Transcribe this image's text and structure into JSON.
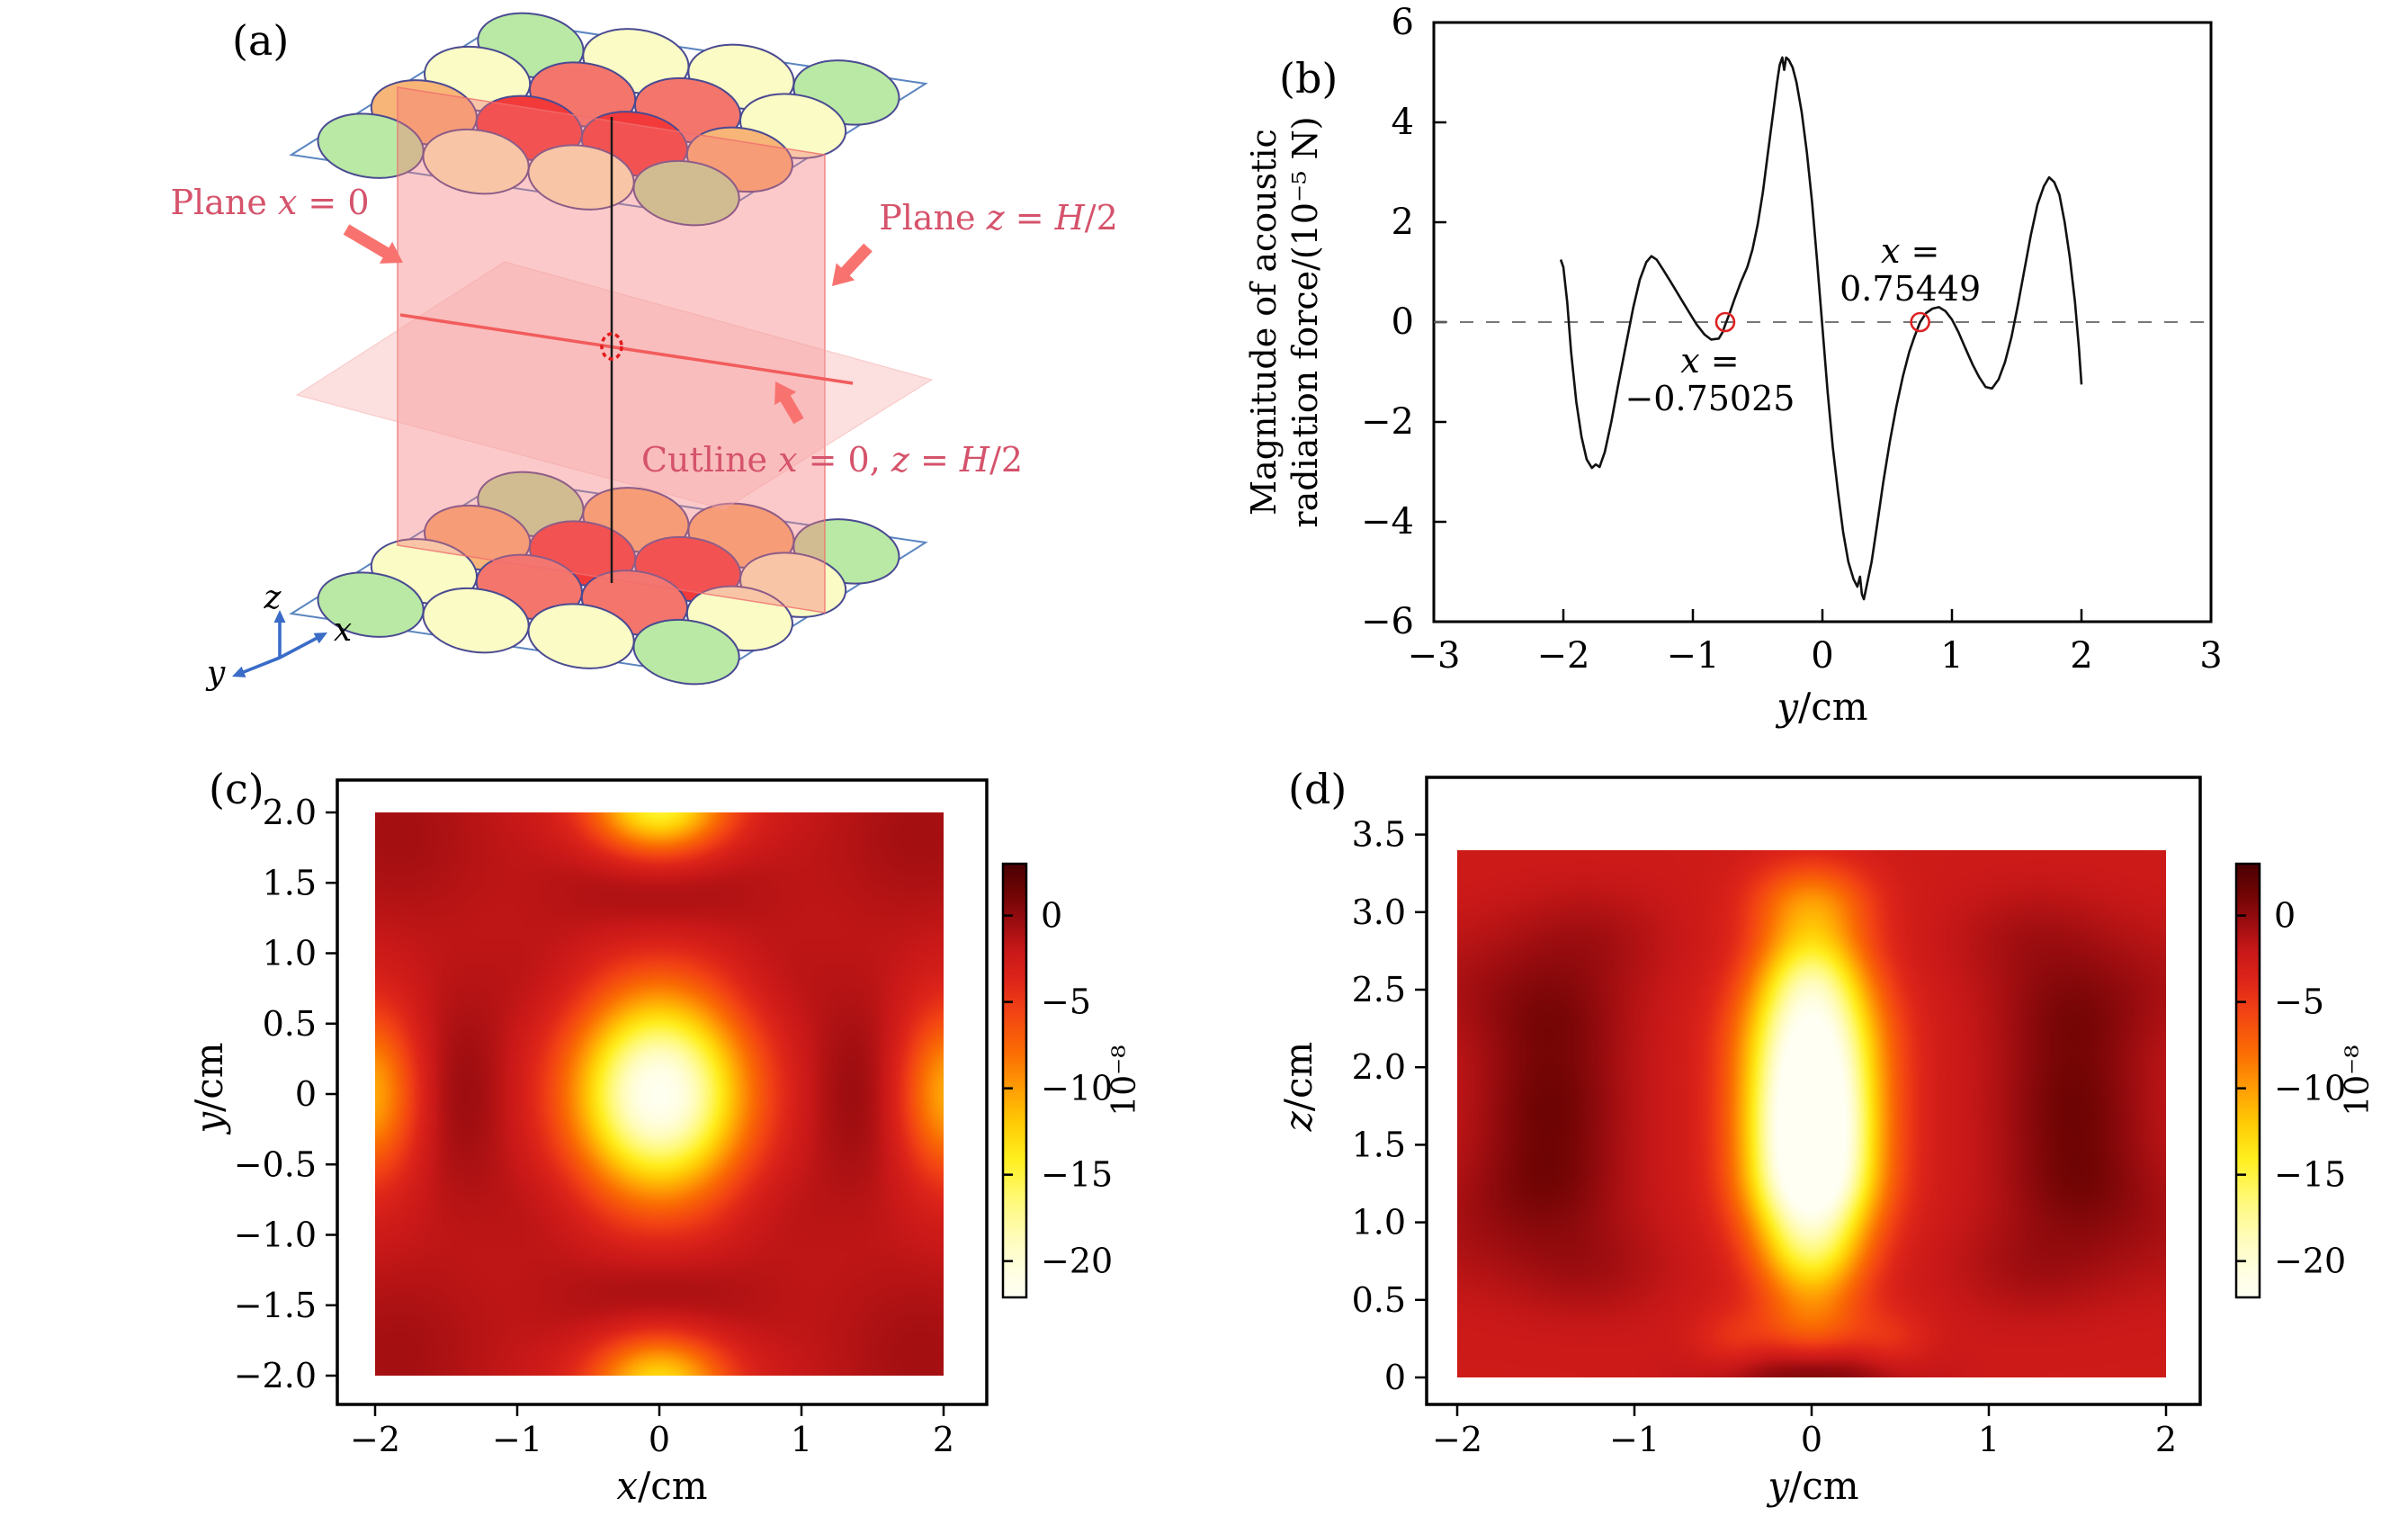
{
  "figure": {
    "type": "scientific-multipanel",
    "accent_colors": {
      "crimson_label": "#d5536b",
      "salmon_arrow": "#f8736f",
      "axis_blue": "#3a6cc8",
      "marker_red": "#dd2222",
      "curve_black": "#111111"
    }
  },
  "panel_a": {
    "label": "(a)",
    "annotations": {
      "plane_x": "Plane x = 0",
      "plane_z": "Plane z = H/2",
      "cutline": "Cutline x = 0, z = H/2"
    },
    "axes_labels": {
      "x": "x",
      "y": "y",
      "z": "z"
    },
    "transducer_colors": {
      "G": "#b9e9a4",
      "Y": "#fafbc5",
      "S": "#f4756b",
      "R": "#f23a3a",
      "O": "#f7b577"
    },
    "top_array_rows": [
      [
        "G",
        "Y",
        "Y",
        "G"
      ],
      [
        "Y",
        "S",
        "S",
        "Y"
      ],
      [
        "O",
        "R",
        "R",
        "O"
      ],
      [
        "G",
        "Y",
        "Y",
        "G"
      ]
    ],
    "bottom_array_rows": [
      [
        "G",
        "O",
        "O",
        "G"
      ],
      [
        "O",
        "R",
        "R",
        "Y"
      ],
      [
        "Y",
        "S",
        "S",
        "Y"
      ],
      [
        "G",
        "Y",
        "Y",
        "G"
      ]
    ],
    "outline_color": "#5b86c0",
    "circle_stroke": "#4a4a92",
    "vplane_fill": "rgba(246,120,120,0.40)",
    "hplane_fill": "rgba(248,170,170,0.38)",
    "cutline_color": "#f25c5c",
    "dotted_circle_color": "#e31a1c"
  },
  "panel_b": {
    "label": "(b)"
  },
  "panel_c": {
    "label": "(c)"
  },
  "panel_d": {
    "label": "(d)"
  },
  "chart_data": [
    {
      "id": "b",
      "type": "line",
      "ylabel_lines": [
        "Magnitude of acoustic",
        "radiation force/(10⁻⁵ N)"
      ],
      "xlabel": "y/cm",
      "xlim": [
        -3,
        3
      ],
      "ylim": [
        -6,
        6
      ],
      "xticks": [
        "−3",
        "−2",
        "−1",
        "0",
        "1",
        "2",
        "3"
      ],
      "xtick_vals": [
        -3,
        -2,
        -1,
        0,
        1,
        2,
        3
      ],
      "yticks": [
        "−6",
        "−4",
        "−2",
        "0",
        "2",
        "4",
        "6"
      ],
      "ytick_vals": [
        -6,
        -4,
        -2,
        0,
        2,
        4,
        6
      ],
      "zero_line_dashed": true,
      "markers": [
        {
          "x": -0.75025,
          "y": 0,
          "label_lines": [
            "x =",
            "−0.75025"
          ],
          "label_side": "below"
        },
        {
          "x": 0.75449,
          "y": 0,
          "label_lines": [
            "x =",
            "0.75449"
          ],
          "label_side": "above"
        }
      ],
      "points": [
        [
          -2.02,
          1.25
        ],
        [
          -2.0,
          1.1
        ],
        [
          -1.97,
          0.4
        ],
        [
          -1.94,
          -0.6
        ],
        [
          -1.9,
          -1.6
        ],
        [
          -1.86,
          -2.3
        ],
        [
          -1.82,
          -2.75
        ],
        [
          -1.78,
          -2.92
        ],
        [
          -1.75,
          -2.85
        ],
        [
          -1.72,
          -2.9
        ],
        [
          -1.68,
          -2.6
        ],
        [
          -1.63,
          -2.0
        ],
        [
          -1.58,
          -1.3
        ],
        [
          -1.52,
          -0.5
        ],
        [
          -1.46,
          0.3
        ],
        [
          -1.41,
          0.85
        ],
        [
          -1.36,
          1.2
        ],
        [
          -1.32,
          1.32
        ],
        [
          -1.28,
          1.25
        ],
        [
          -1.23,
          1.05
        ],
        [
          -1.17,
          0.8
        ],
        [
          -1.1,
          0.5
        ],
        [
          -1.03,
          0.2
        ],
        [
          -0.97,
          -0.05
        ],
        [
          -0.91,
          -0.25
        ],
        [
          -0.86,
          -0.35
        ],
        [
          -0.8,
          -0.33
        ],
        [
          -0.77,
          -0.2
        ],
        [
          -0.75,
          -0.05
        ],
        [
          -0.72,
          0.15
        ],
        [
          -0.68,
          0.45
        ],
        [
          -0.63,
          0.8
        ],
        [
          -0.58,
          1.1
        ],
        [
          -0.54,
          1.45
        ],
        [
          -0.5,
          1.95
        ],
        [
          -0.46,
          2.6
        ],
        [
          -0.42,
          3.4
        ],
        [
          -0.38,
          4.2
        ],
        [
          -0.35,
          4.8
        ],
        [
          -0.33,
          5.15
        ],
        [
          -0.31,
          5.3
        ],
        [
          -0.295,
          5.05
        ],
        [
          -0.28,
          5.3
        ],
        [
          -0.26,
          5.25
        ],
        [
          -0.23,
          5.1
        ],
        [
          -0.2,
          4.8
        ],
        [
          -0.16,
          4.2
        ],
        [
          -0.12,
          3.4
        ],
        [
          -0.08,
          2.4
        ],
        [
          -0.04,
          1.2
        ],
        [
          0.0,
          -0.1
        ],
        [
          0.04,
          -1.4
        ],
        [
          0.08,
          -2.5
        ],
        [
          0.12,
          -3.4
        ],
        [
          0.16,
          -4.2
        ],
        [
          0.2,
          -4.8
        ],
        [
          0.24,
          -5.15
        ],
        [
          0.27,
          -5.3
        ],
        [
          0.29,
          -5.1
        ],
        [
          0.305,
          -5.45
        ],
        [
          0.32,
          -5.55
        ],
        [
          0.34,
          -5.3
        ],
        [
          0.38,
          -4.8
        ],
        [
          0.42,
          -4.1
        ],
        [
          0.47,
          -3.2
        ],
        [
          0.52,
          -2.4
        ],
        [
          0.57,
          -1.7
        ],
        [
          0.62,
          -1.1
        ],
        [
          0.67,
          -0.6
        ],
        [
          0.71,
          -0.3
        ],
        [
          0.754,
          0.0
        ],
        [
          0.8,
          0.18
        ],
        [
          0.85,
          0.27
        ],
        [
          0.9,
          0.3
        ],
        [
          0.95,
          0.22
        ],
        [
          1.0,
          0.05
        ],
        [
          1.05,
          -0.2
        ],
        [
          1.1,
          -0.5
        ],
        [
          1.16,
          -0.85
        ],
        [
          1.21,
          -1.1
        ],
        [
          1.26,
          -1.3
        ],
        [
          1.31,
          -1.33
        ],
        [
          1.36,
          -1.15
        ],
        [
          1.41,
          -0.8
        ],
        [
          1.46,
          -0.3
        ],
        [
          1.51,
          0.35
        ],
        [
          1.56,
          1.05
        ],
        [
          1.61,
          1.75
        ],
        [
          1.66,
          2.35
        ],
        [
          1.71,
          2.72
        ],
        [
          1.75,
          2.9
        ],
        [
          1.79,
          2.8
        ],
        [
          1.83,
          2.55
        ],
        [
          1.87,
          2.0
        ],
        [
          1.91,
          1.3
        ],
        [
          1.95,
          0.4
        ],
        [
          1.98,
          -0.5
        ],
        [
          2.0,
          -1.25
        ]
      ]
    },
    {
      "id": "c",
      "type": "heatmap",
      "xlabel": "x/cm",
      "ylabel": "y/cm",
      "extent": {
        "x": [
          -2,
          2
        ],
        "y": [
          -2,
          2
        ]
      },
      "xticks": [
        "−2",
        "−1",
        "0",
        "1",
        "2"
      ],
      "xtick_vals": [
        -2,
        -1,
        0,
        1,
        2
      ],
      "yticks": [
        "2.0",
        "1.5",
        "1.0",
        "0.5",
        "0",
        "−0.5",
        "−1.0",
        "−1.5",
        "−2.0"
      ],
      "ytick_vals": [
        2.0,
        1.5,
        1.0,
        0.5,
        0,
        -0.5,
        -1.0,
        -1.5,
        -2.0
      ],
      "base_value": -2.4,
      "blobs": [
        [
          0,
          0,
          0.42,
          0.5,
          -19.5
        ],
        [
          0,
          2.05,
          0.34,
          0.26,
          -13
        ],
        [
          0,
          -2.05,
          0.34,
          0.26,
          -11
        ],
        [
          -2.05,
          0,
          0.26,
          0.42,
          -8.5
        ],
        [
          2.05,
          0,
          0.26,
          0.42,
          -8.5
        ],
        [
          1.42,
          0,
          0.3,
          0.55,
          2.3
        ],
        [
          -1.42,
          0,
          0.3,
          0.55,
          2.3
        ],
        [
          0,
          1.5,
          0.55,
          0.3,
          2.3
        ],
        [
          0,
          -1.5,
          0.55,
          0.3,
          2.3
        ],
        [
          1.85,
          1.85,
          0.5,
          0.5,
          1.7
        ],
        [
          -1.85,
          1.85,
          0.5,
          0.5,
          1.7
        ],
        [
          1.85,
          -1.85,
          0.5,
          0.5,
          1.7
        ],
        [
          -1.85,
          -1.85,
          0.5,
          0.5,
          1.7
        ],
        [
          0.8,
          0.8,
          0.3,
          0.3,
          0.9
        ],
        [
          -0.8,
          0.8,
          0.3,
          0.3,
          0.9
        ],
        [
          0.8,
          -0.8,
          0.3,
          0.3,
          0.9
        ],
        [
          -0.8,
          -0.8,
          0.3,
          0.3,
          0.9
        ]
      ],
      "colorbar": {
        "ticks": [
          "0",
          "−5",
          "−10",
          "−15",
          "−20"
        ],
        "tick_vals": [
          0,
          -5,
          -10,
          -15,
          -20
        ],
        "vmax": 3,
        "vmin": -22.1,
        "label": "10⁻⁸"
      }
    },
    {
      "id": "d",
      "type": "heatmap",
      "xlabel": "y/cm",
      "ylabel": "z/cm",
      "extent": {
        "x": [
          -2,
          2
        ],
        "y": [
          0,
          3.4
        ]
      },
      "xticks": [
        "−2",
        "−1",
        "0",
        "1",
        "2"
      ],
      "xtick_vals": [
        -2,
        -1,
        0,
        1,
        2
      ],
      "yticks": [
        "3.5",
        "3.0",
        "2.5",
        "2.0",
        "1.5",
        "1.0",
        "0.5",
        "0"
      ],
      "ytick_vals": [
        3.5,
        3.0,
        2.5,
        2.0,
        1.5,
        1.0,
        0.5,
        0
      ],
      "base_value": -2.4,
      "blobs": [
        [
          0,
          1.7,
          0.26,
          0.3,
          -20
        ],
        [
          0,
          1.22,
          0.26,
          0.26,
          -16
        ],
        [
          0,
          2.22,
          0.27,
          0.28,
          -15
        ],
        [
          0,
          0.78,
          0.22,
          0.22,
          -9
        ],
        [
          0,
          2.62,
          0.22,
          0.22,
          -8.5
        ],
        [
          0,
          3.05,
          0.24,
          0.2,
          -6.5
        ],
        [
          0,
          0.32,
          0.22,
          0.2,
          -4.5
        ],
        [
          1.48,
          1.28,
          0.3,
          0.26,
          2.7
        ],
        [
          -1.48,
          1.28,
          0.3,
          0.26,
          2.7
        ],
        [
          1.48,
          1.78,
          0.3,
          0.26,
          2.9
        ],
        [
          -1.48,
          1.78,
          0.3,
          0.26,
          2.9
        ],
        [
          1.45,
          2.3,
          0.3,
          0.26,
          2.5
        ],
        [
          -1.45,
          2.3,
          0.3,
          0.26,
          2.5
        ],
        [
          1.25,
          0.72,
          0.32,
          0.24,
          1.6
        ],
        [
          -1.25,
          0.72,
          0.32,
          0.24,
          1.6
        ],
        [
          1.25,
          2.82,
          0.32,
          0.24,
          1.5
        ],
        [
          -1.25,
          2.82,
          0.32,
          0.24,
          1.5
        ],
        [
          1.9,
          0.95,
          0.38,
          0.3,
          1.2
        ],
        [
          -1.9,
          0.95,
          0.38,
          0.3,
          1.2
        ],
        [
          1.9,
          2.55,
          0.38,
          0.3,
          1.1
        ],
        [
          -1.9,
          2.55,
          0.38,
          0.3,
          1.1
        ],
        [
          0,
          0.02,
          0.38,
          0.14,
          4.2
        ],
        [
          0.45,
          0.22,
          0.16,
          0.16,
          -2.2
        ],
        [
          -0.45,
          0.22,
          0.16,
          0.16,
          -2.2
        ]
      ],
      "colorbar": {
        "ticks": [
          "0",
          "−5",
          "−10",
          "−15",
          "−20"
        ],
        "tick_vals": [
          0,
          -5,
          -10,
          -15,
          -20
        ],
        "vmax": 3,
        "vmin": -22.1,
        "label": "10⁻⁸"
      }
    }
  ],
  "colormap_stops": [
    [
      0.0,
      [
        74,
        0,
        3
      ]
    ],
    [
      0.07,
      [
        112,
        4,
        4
      ]
    ],
    [
      0.13,
      [
        152,
        12,
        15
      ]
    ],
    [
      0.2,
      [
        200,
        24,
        24
      ]
    ],
    [
      0.27,
      [
        222,
        37,
        25
      ]
    ],
    [
      0.34,
      [
        242,
        66,
        20
      ]
    ],
    [
      0.43,
      [
        250,
        106,
        3
      ]
    ],
    [
      0.52,
      [
        255,
        158,
        4
      ]
    ],
    [
      0.6,
      [
        255,
        204,
        5
      ]
    ],
    [
      0.68,
      [
        255,
        238,
        30
      ]
    ],
    [
      0.77,
      [
        255,
        249,
        115
      ]
    ],
    [
      0.86,
      [
        255,
        252,
        185
      ]
    ],
    [
      0.94,
      [
        255,
        254,
        225
      ]
    ],
    [
      1.0,
      [
        255,
        255,
        244
      ]
    ]
  ]
}
